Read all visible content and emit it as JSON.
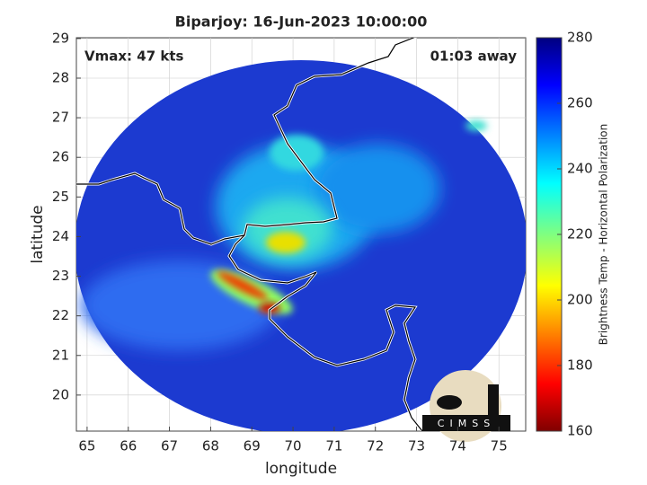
{
  "chart_data": {
    "type": "map",
    "title": "Biparjoy: 16-Jun-2023 10:00:00",
    "annotations": [
      "Vmax: 47 kts",
      "01:03 away"
    ],
    "x_label": "longitude",
    "y_label": "latitude",
    "xlim": [
      64.74,
      75.65
    ],
    "xticks": [
      65,
      66,
      67,
      68,
      69,
      70,
      71,
      72,
      73,
      74,
      75
    ],
    "ylim": [
      19.09,
      29.02
    ],
    "yticks": [
      20,
      21,
      22,
      23,
      24,
      25,
      26,
      27,
      28,
      29
    ],
    "grid": true,
    "colorbar": {
      "label": "Brightness Temp - Horizontal Polarization",
      "lim": [
        160,
        280
      ],
      "ticks": [
        160,
        180,
        200,
        220,
        240,
        260,
        280
      ]
    },
    "logo": "CIMSS"
  }
}
